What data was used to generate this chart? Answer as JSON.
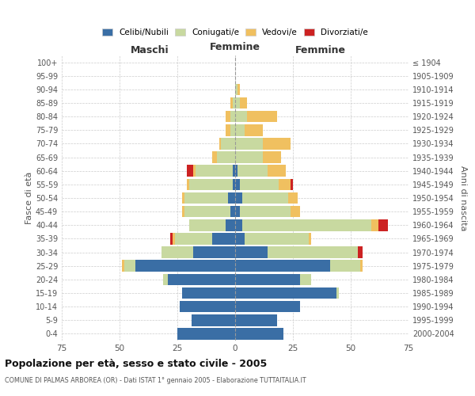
{
  "age_groups": [
    "0-4",
    "5-9",
    "10-14",
    "15-19",
    "20-24",
    "25-29",
    "30-34",
    "35-39",
    "40-44",
    "45-49",
    "50-54",
    "55-59",
    "60-64",
    "65-69",
    "70-74",
    "75-79",
    "80-84",
    "85-89",
    "90-94",
    "95-99",
    "100+"
  ],
  "birth_years": [
    "2000-2004",
    "1995-1999",
    "1990-1994",
    "1985-1989",
    "1980-1984",
    "1975-1979",
    "1970-1974",
    "1965-1969",
    "1960-1964",
    "1955-1959",
    "1950-1954",
    "1945-1949",
    "1940-1944",
    "1935-1939",
    "1930-1934",
    "1925-1929",
    "1920-1924",
    "1915-1919",
    "1910-1914",
    "1905-1909",
    "≤ 1904"
  ],
  "maschi": {
    "celibi": [
      25,
      19,
      24,
      23,
      29,
      43,
      18,
      10,
      4,
      2,
      3,
      1,
      1,
      0,
      0,
      0,
      0,
      0,
      0,
      0,
      0
    ],
    "coniugati": [
      0,
      0,
      0,
      0,
      2,
      5,
      14,
      16,
      16,
      20,
      19,
      19,
      16,
      8,
      6,
      2,
      2,
      1,
      0,
      0,
      0
    ],
    "vedovi": [
      0,
      0,
      0,
      0,
      0,
      1,
      0,
      1,
      0,
      1,
      1,
      1,
      1,
      2,
      1,
      2,
      2,
      1,
      0,
      0,
      0
    ],
    "divorziati": [
      0,
      0,
      0,
      0,
      0,
      0,
      0,
      1,
      0,
      0,
      0,
      0,
      3,
      0,
      0,
      0,
      0,
      0,
      0,
      0,
      0
    ]
  },
  "femmine": {
    "nubili": [
      21,
      18,
      28,
      44,
      28,
      41,
      14,
      4,
      3,
      2,
      3,
      2,
      1,
      0,
      0,
      0,
      0,
      0,
      0,
      0,
      0
    ],
    "coniugate": [
      0,
      0,
      0,
      1,
      5,
      13,
      39,
      28,
      56,
      22,
      20,
      17,
      13,
      12,
      12,
      4,
      5,
      2,
      1,
      0,
      0
    ],
    "vedove": [
      0,
      0,
      0,
      0,
      0,
      1,
      0,
      1,
      3,
      4,
      4,
      5,
      8,
      8,
      12,
      8,
      13,
      3,
      1,
      0,
      0
    ],
    "divorziate": [
      0,
      0,
      0,
      0,
      0,
      0,
      2,
      0,
      4,
      0,
      0,
      1,
      0,
      0,
      0,
      0,
      0,
      0,
      0,
      0,
      0
    ]
  },
  "colors": {
    "celibi_nubili": "#3A6EA5",
    "coniugati": "#C8D9A0",
    "vedovi": "#F0C060",
    "divorziati": "#CC2222"
  },
  "title": "Popolazione per età, sesso e stato civile - 2005",
  "subtitle": "COMUNE DI PALMAS ARBOREA (OR) - Dati ISTAT 1° gennaio 2005 - Elaborazione TUTTAITALIA.IT",
  "xlim": 75,
  "xlabel_left": "Maschi",
  "xlabel_right": "Femmine",
  "ylabel_left": "Fasce di età",
  "ylabel_right": "Anni di nascita",
  "legend_labels": [
    "Celibi/Nubili",
    "Coniugati/e",
    "Vedovi/e",
    "Divorziati/e"
  ],
  "bg_color": "#FFFFFF",
  "grid_color": "#CCCCCC",
  "maschi_color": "#333333",
  "femmine_color": "#333333"
}
